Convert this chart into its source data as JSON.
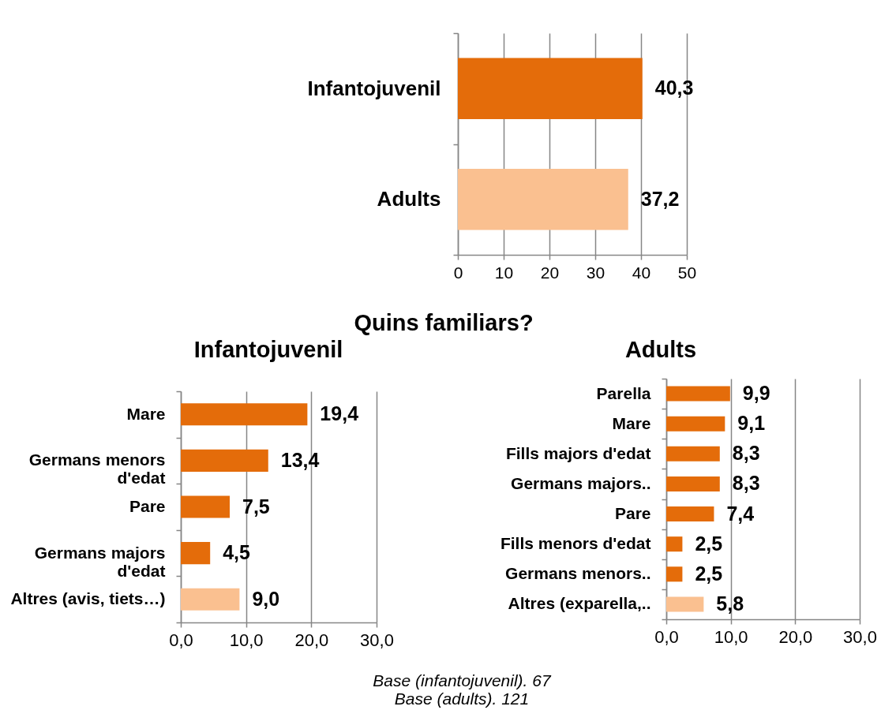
{
  "chart_data": [
    {
      "type": "bar",
      "orientation": "horizontal",
      "categories": [
        "Infantojuvenil",
        "Adults"
      ],
      "values": [
        40.3,
        37.2
      ],
      "colors": [
        "#e46c0a",
        "#fac090"
      ],
      "value_labels": [
        "40,3",
        "37,2"
      ],
      "xlim": [
        0,
        50
      ],
      "xticks": [
        0,
        10,
        20,
        30,
        40,
        50
      ],
      "grid": "x"
    },
    {
      "type": "other",
      "title": "Quins familiars?"
    },
    {
      "type": "bar",
      "orientation": "horizontal",
      "title": "Infantojuvenil",
      "categories": [
        "Mare",
        "Germans menors\nd'edat",
        "Pare",
        "Germans majors\nd'edat",
        "Altres (avis, tiets…)"
      ],
      "values": [
        19.4,
        13.4,
        7.5,
        4.5,
        9.0
      ],
      "colors": [
        "#e46c0a",
        "#e46c0a",
        "#e46c0a",
        "#e46c0a",
        "#fac090"
      ],
      "value_labels": [
        "19,4",
        "13,4",
        "7,5",
        "4,5",
        "9,0"
      ],
      "xlim": [
        0,
        30
      ],
      "xticks": [
        {
          "value": 0,
          "label": "0,0"
        },
        {
          "value": 10,
          "label": "10,0"
        },
        {
          "value": 20,
          "label": "20,0"
        },
        {
          "value": 30,
          "label": "30,0"
        }
      ],
      "grid": "x"
    },
    {
      "type": "bar",
      "orientation": "horizontal",
      "title": "Adults",
      "categories": [
        "Parella",
        "Mare",
        "Fills majors d'edat",
        "Germans majors..",
        "Pare",
        "Fills menors d'edat",
        "Germans menors..",
        "Altres (exparella,.."
      ],
      "values": [
        9.9,
        9.1,
        8.3,
        8.3,
        7.4,
        2.5,
        2.5,
        5.8
      ],
      "colors": [
        "#e46c0a",
        "#e46c0a",
        "#e46c0a",
        "#e46c0a",
        "#e46c0a",
        "#e46c0a",
        "#e46c0a",
        "#fac090"
      ],
      "value_labels": [
        "9,9",
        "9,1",
        "8,3",
        "8,3",
        "7,4",
        "2,5",
        "2,5",
        "5,8"
      ],
      "xlim": [
        0,
        30
      ],
      "xticks": [
        {
          "value": 0,
          "label": "0,0"
        },
        {
          "value": 10,
          "label": "10,0"
        },
        {
          "value": 20,
          "label": "20,0"
        },
        {
          "value": 30,
          "label": "30,0"
        }
      ],
      "grid": "x"
    },
    {
      "type": "other",
      "annotations": [
        "Base (infantojuvenil). 67",
        "Base (adults). 121"
      ]
    }
  ]
}
